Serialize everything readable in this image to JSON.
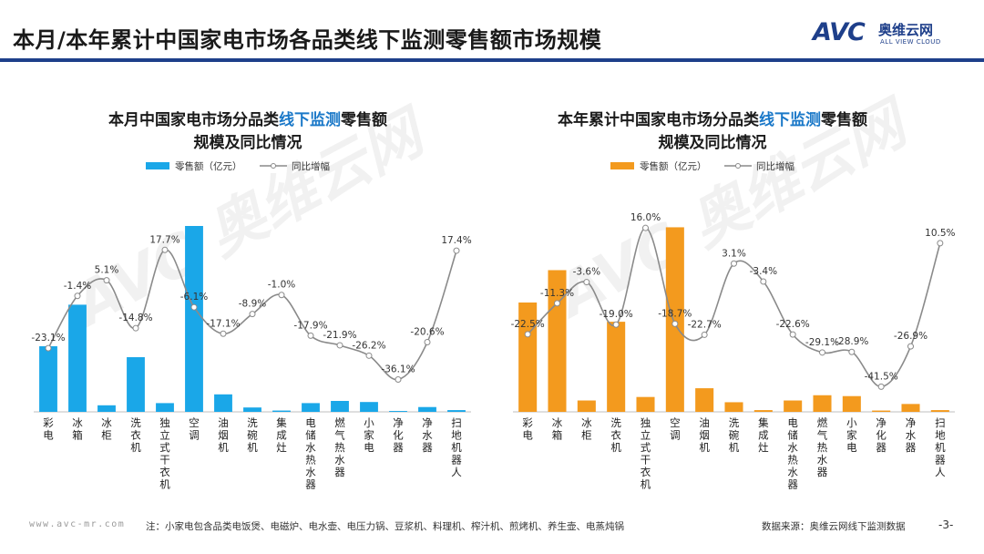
{
  "page": {
    "title": "本月/本年累计中国家电市场各品类线下监测零售额市场规模",
    "logo": {
      "mark": "AVC",
      "cn": "奥维云网",
      "en": "ALL VIEW CLOUD"
    },
    "watermark": "AVC 奥维云网"
  },
  "footer": {
    "url": "www.avc-mr.com",
    "note": "注：小家电包含品类电饭煲、电磁炉、电水壶、电压力锅、豆浆机、料理机、榨汁机、煎烤机、养生壶、电蒸炖锅",
    "source": "数据来源：奥维云网线下监测数据",
    "page_number": "-3-"
  },
  "colors": {
    "brand": "#1e3f8a",
    "left_bar": "#1aa7e8",
    "right_bar": "#f39a1e",
    "line": "#8a8a8a",
    "title_highlight": "#1a78c8"
  },
  "chart_data": [
    {
      "type": "bar",
      "title_parts": [
        "本月中国家电市场分品类",
        "线下监测",
        "零售额"
      ],
      "title_line2": "规模及同比情况",
      "legend": {
        "bar": "零售额（亿元）",
        "line": "同比增幅"
      },
      "categories": [
        "彩电",
        "冰箱",
        "冰柜",
        "洗衣机",
        "独立式干衣机",
        "空调",
        "油烟机",
        "洗碗机",
        "集成灶",
        "电储水热水器",
        "燃气热水器",
        "小家电",
        "净化器",
        "净水器",
        "扫地机器人"
      ],
      "series": [
        {
          "kind": "bar",
          "values": [
            30,
            49,
            3,
            25,
            4,
            85,
            8,
            2,
            0.6,
            4,
            5,
            4.5,
            0.4,
            2.2,
            0.8
          ]
        },
        {
          "kind": "line",
          "values": [
            -23.1,
            -1.4,
            5.1,
            -14.8,
            17.7,
            -6.1,
            -17.1,
            -8.9,
            -1.0,
            -17.9,
            -21.9,
            -26.2,
            -36.1,
            -20.6,
            17.4
          ]
        }
      ],
      "labels": [
        "-23.1%",
        "-1.4%",
        "5.1%",
        "-14.8%",
        "17.7%",
        "-6.1%",
        "-17.1%",
        "-8.9%",
        "-1.0%",
        "-17.9%",
        "-21.9%",
        "-26.2%",
        "-36.1%",
        "-20.6%",
        "17.4%"
      ],
      "ylim_bar": [
        0,
        90
      ],
      "ylim_line": [
        -45,
        25
      ]
    },
    {
      "type": "bar",
      "title_parts": [
        "本年累计中国家电市场分品类",
        "线下监测",
        "零售额"
      ],
      "title_line2": "规模及同比情况",
      "legend": {
        "bar": "零售额（亿元）",
        "line": "同比增幅"
      },
      "categories": [
        "彩电",
        "冰箱",
        "冰柜",
        "洗衣机",
        "独立式干衣机",
        "空调",
        "油烟机",
        "洗碗机",
        "集成灶",
        "电储水热水器",
        "燃气热水器",
        "小家电",
        "净化器",
        "净水器",
        "扫地机器人"
      ],
      "series": [
        {
          "kind": "bar",
          "values": [
            125,
            162,
            13,
            103,
            17,
            211,
            27,
            11,
            2,
            13,
            19,
            18,
            1.5,
            9,
            2
          ]
        },
        {
          "kind": "line",
          "values": [
            -22.5,
            -11.3,
            -3.6,
            -19.0,
            16.0,
            -18.7,
            -22.7,
            3.1,
            -3.4,
            -22.6,
            -29.1,
            -28.9,
            -41.5,
            -26.9,
            10.5
          ]
        }
      ],
      "labels": [
        "-22.5%",
        "-11.3%",
        "-3.6%",
        "-19.0%",
        "16.0%",
        "-18.7%",
        "-22.7%",
        "3.1%",
        "-3.4%",
        "-22.6%",
        "-29.1%",
        "-28.9%",
        "-41.5%",
        "-26.9%",
        "10.5%"
      ],
      "ylim_bar": [
        0,
        225
      ],
      "ylim_line": [
        -45,
        22
      ]
    }
  ]
}
